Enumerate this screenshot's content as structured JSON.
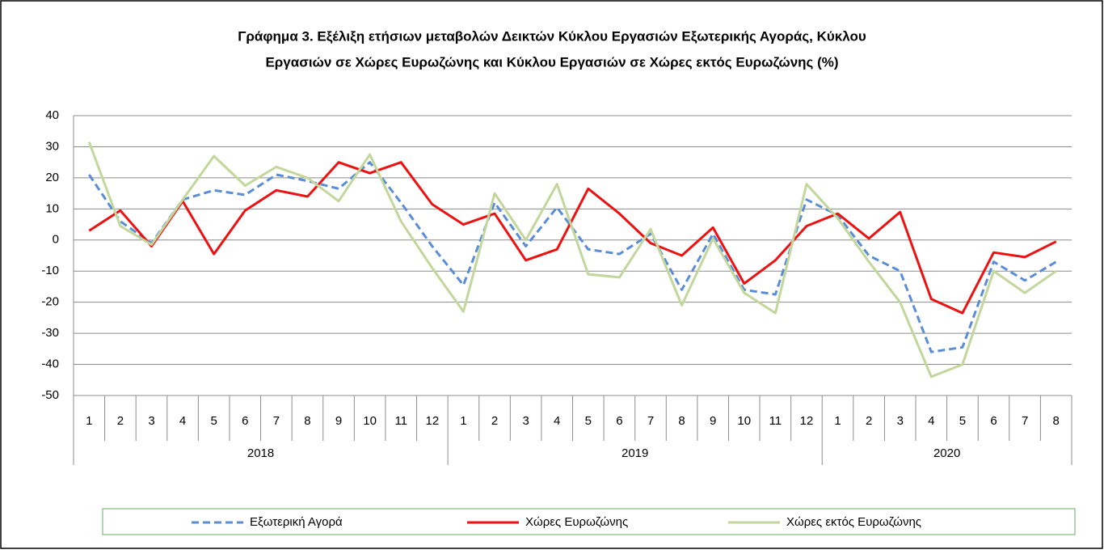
{
  "chart_data": {
    "type": "line",
    "title": [
      "Γράφημα 3. Εξέλιξη  ετήσιων μεταβολών Δεικτών Κύκλου Εργασιών Εξωτερικής Αγοράς,  Κύκλου",
      "Εργασιών σε Χώρες Ευρωζώνης και Κύκλου  Εργασιών σε Χώρες εκτός Ευρωζώνης (%)"
    ],
    "groups": [
      {
        "name": "2018",
        "categories": [
          "1",
          "2",
          "3",
          "4",
          "5",
          "6",
          "7",
          "8",
          "9",
          "10",
          "11",
          "12"
        ]
      },
      {
        "name": "2019",
        "categories": [
          "1",
          "2",
          "3",
          "4",
          "5",
          "6",
          "7",
          "8",
          "9",
          "10",
          "11",
          "12"
        ]
      },
      {
        "name": "2020",
        "categories": [
          "1",
          "2",
          "3",
          "4",
          "5",
          "6",
          "7",
          "8"
        ]
      }
    ],
    "series": [
      {
        "name": "Εξωτερική Αγορά",
        "color": "#5b8dd6",
        "dashed": true,
        "values": [
          21,
          6,
          -1,
          13,
          16,
          14.5,
          21,
          19,
          16.5,
          25,
          12,
          -2,
          -14.5,
          12,
          -2,
          10.5,
          -3,
          -4.5,
          2,
          -16,
          2,
          -16,
          -17.5,
          13,
          8,
          -5,
          -10,
          -36,
          -34.5,
          -7,
          -13,
          -7
        ]
      },
      {
        "name": "Χώρες Ευρωζώνης",
        "color": "#ee1111",
        "dashed": false,
        "values": [
          3,
          9.5,
          -2,
          12.5,
          -4.5,
          9.5,
          16,
          14,
          25,
          21.5,
          25,
          11.5,
          5,
          8.5,
          -6.5,
          -3,
          16.5,
          8.5,
          -1,
          -5,
          4,
          -14,
          -6.5,
          4.5,
          8.5,
          0.5,
          9,
          -19,
          -23.5,
          -4,
          -5.5,
          -0.5
        ]
      },
      {
        "name": "Χώρες εκτός Ευρωζώνης",
        "color": "#c3d69b",
        "dashed": false,
        "values": [
          31.5,
          4.5,
          -1.5,
          13,
          27,
          17.5,
          23.5,
          20,
          12.5,
          27.5,
          6,
          -9,
          -23,
          15,
          0,
          18,
          -11,
          -12,
          3.5,
          -21,
          0.5,
          -17,
          -23.5,
          18,
          7,
          -7,
          -20,
          -44,
          -40,
          -10,
          -17,
          -10
        ]
      }
    ],
    "ylim": [
      -50,
      40
    ],
    "yticks": [
      -50,
      -40,
      -30,
      -20,
      -10,
      0,
      10,
      20,
      30,
      40
    ],
    "grid": true,
    "legend": "bottom"
  }
}
